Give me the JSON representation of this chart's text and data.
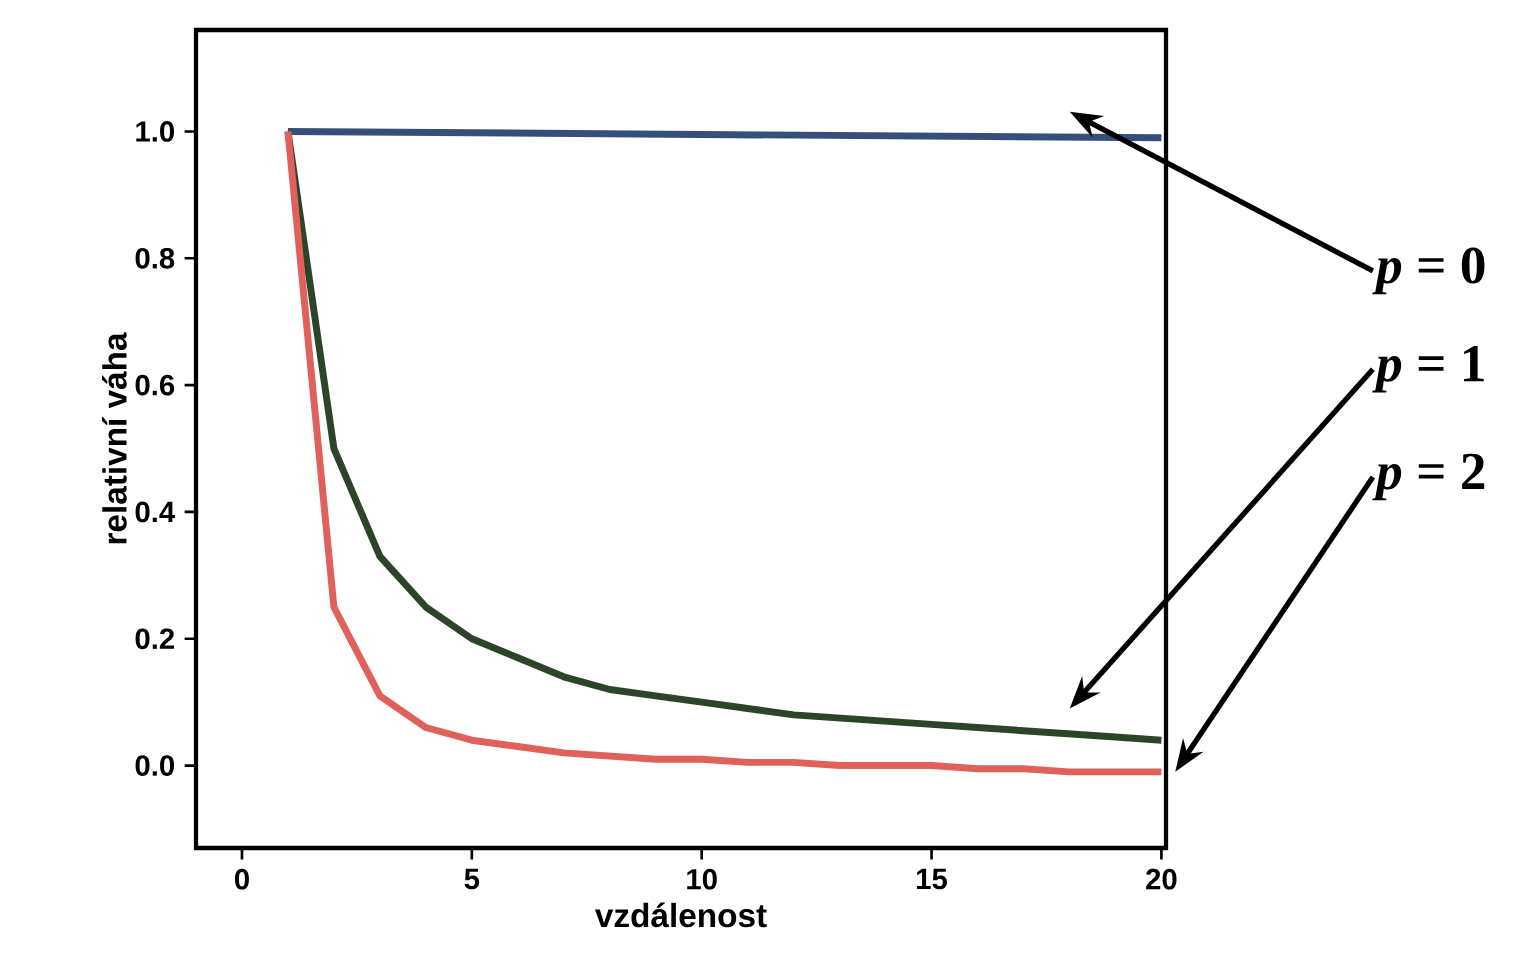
{
  "chart_data": {
    "type": "line",
    "xlabel": "vzdálenost",
    "ylabel": "relativní váha",
    "xlim": [
      -1,
      20.1
    ],
    "ylim": [
      -0.13,
      1.16
    ],
    "xticks": [
      0,
      5,
      10,
      15,
      20
    ],
    "yticks": [
      {
        "value": 0,
        "label": "0.0"
      },
      {
        "value": 0.2,
        "label": "0.2"
      },
      {
        "value": 0.4,
        "label": "0.4"
      },
      {
        "value": 0.6,
        "label": "0.6"
      },
      {
        "value": 0.8,
        "label": "0.8"
      },
      {
        "value": 1,
        "label": "1.0"
      }
    ],
    "series": [
      {
        "name": "*p* = 0",
        "color": "#34507a",
        "x": [
          1,
          20
        ],
        "values": [
          1,
          0.99
        ]
      },
      {
        "name": "*p* = 1",
        "color": "#2c4428",
        "x": [
          1,
          2,
          3,
          4,
          5,
          6,
          7,
          8,
          9,
          10,
          11,
          12,
          13,
          14,
          15,
          16,
          17,
          18,
          19,
          20
        ],
        "values": [
          1,
          0.5,
          0.33,
          0.25,
          0.2,
          0.17,
          0.14,
          0.12,
          0.11,
          0.1,
          0.09,
          0.08,
          0.075,
          0.07,
          0.065,
          0.06,
          0.055,
          0.05,
          0.045,
          0.04
        ]
      },
      {
        "name": "*p* = 2",
        "color": "#e0605a",
        "x": [
          1,
          2,
          3,
          4,
          5,
          6,
          7,
          8,
          9,
          10,
          11,
          12,
          13,
          14,
          15,
          16,
          17,
          18,
          19,
          20
        ],
        "values": [
          1,
          0.25,
          0.11,
          0.06,
          0.04,
          0.03,
          0.02,
          0.015,
          0.01,
          0.01,
          0.005,
          0.005,
          0,
          0,
          0,
          -0.005,
          -0.005,
          -0.01,
          -0.01,
          -0.01
        ]
      }
    ]
  }
}
